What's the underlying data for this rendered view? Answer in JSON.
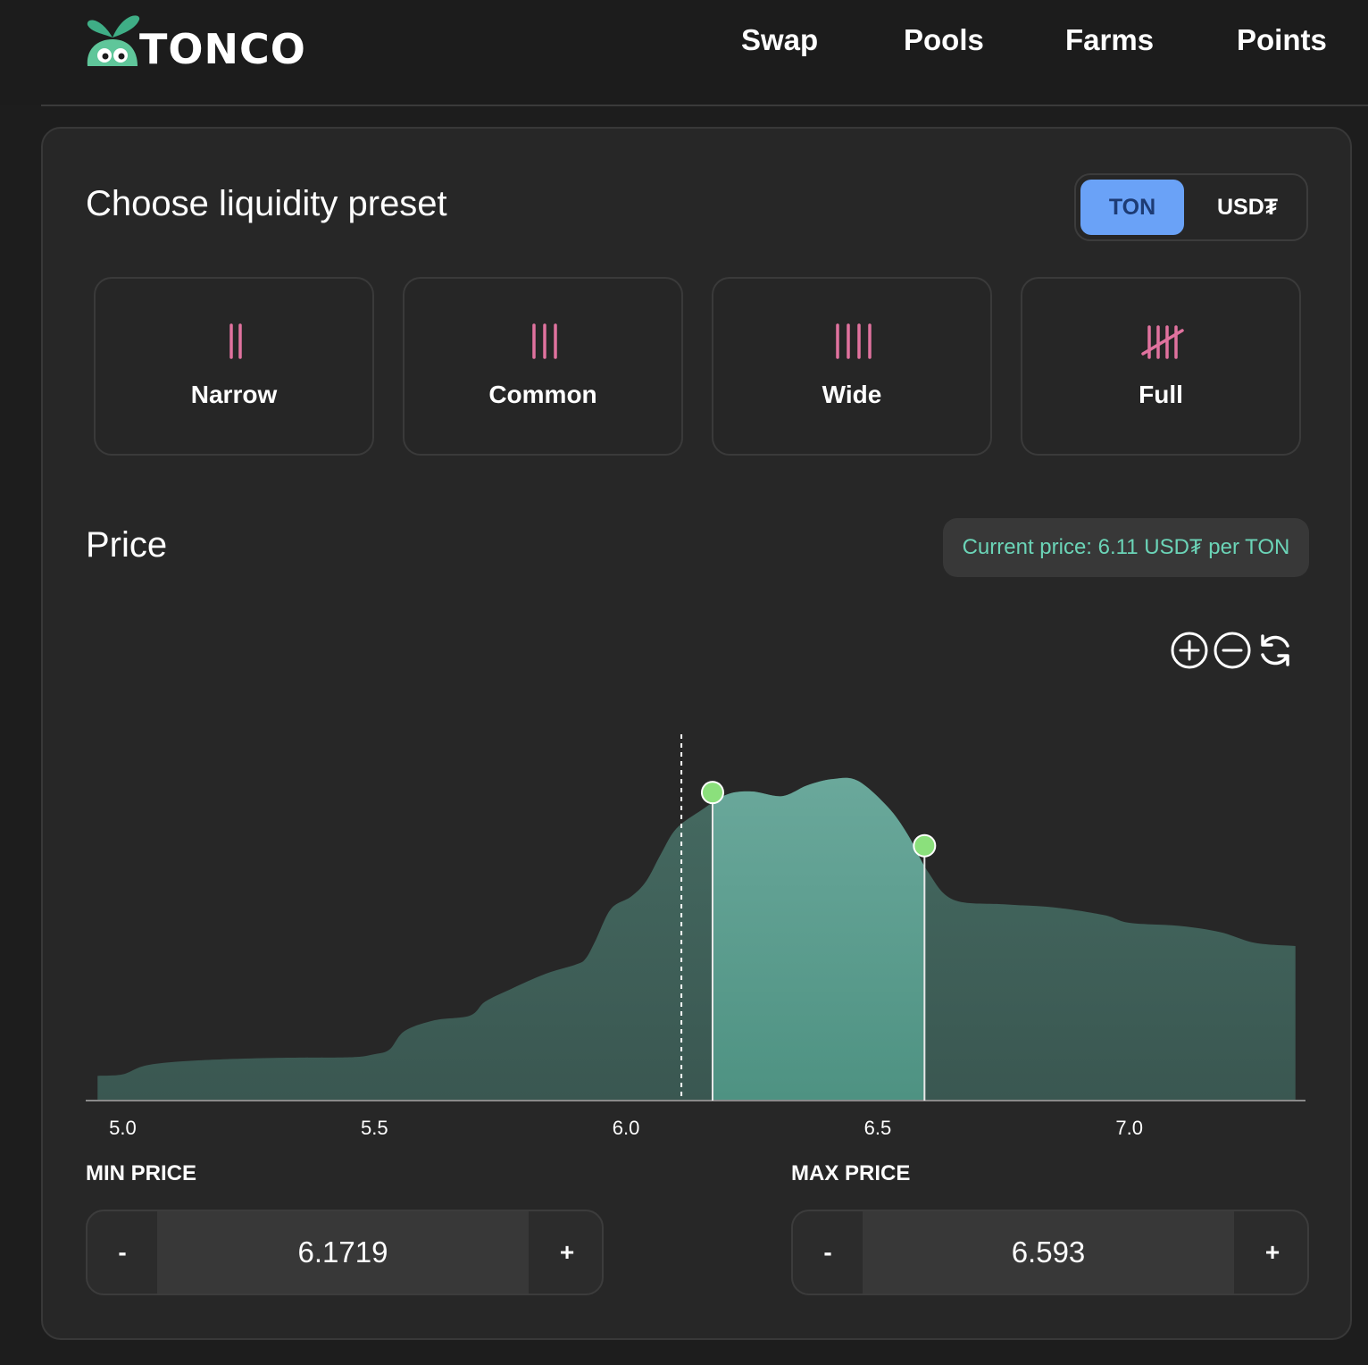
{
  "app": {
    "logo_text": "TONCO"
  },
  "nav": {
    "items": [
      {
        "label": "Swap"
      },
      {
        "label": "Pools"
      },
      {
        "label": "Farms"
      },
      {
        "label": "Points"
      }
    ]
  },
  "preset_section": {
    "title": "Choose liquidity preset",
    "toggle": {
      "active": "TON",
      "inactive": "USD₮"
    },
    "presets": [
      {
        "label": "Narrow",
        "icon": "two-bars-icon"
      },
      {
        "label": "Common",
        "icon": "three-bars-icon"
      },
      {
        "label": "Wide",
        "icon": "four-bars-icon"
      },
      {
        "label": "Full",
        "icon": "tally-five-icon"
      }
    ]
  },
  "price_section": {
    "title": "Price",
    "current_price": "Current price: 6.11 USD₮ per TON",
    "zoom": {
      "in": "zoom-in-icon",
      "out": "zoom-out-icon",
      "reset": "refresh-icon"
    }
  },
  "chart_data": {
    "type": "area",
    "x_ticks": [
      "5.0",
      "5.5",
      "6.0",
      "6.5",
      "7.0"
    ],
    "xlim": [
      4.93,
      7.35
    ],
    "current_price": 6.11,
    "selected_range": [
      6.1719,
      6.593
    ],
    "density": [
      [
        4.95,
        0.08
      ],
      [
        5.0,
        0.085
      ],
      [
        5.05,
        0.115
      ],
      [
        5.15,
        0.13
      ],
      [
        5.3,
        0.138
      ],
      [
        5.45,
        0.14
      ],
      [
        5.5,
        0.15
      ],
      [
        5.53,
        0.165
      ],
      [
        5.56,
        0.225
      ],
      [
        5.62,
        0.26
      ],
      [
        5.69,
        0.275
      ],
      [
        5.72,
        0.32
      ],
      [
        5.77,
        0.36
      ],
      [
        5.84,
        0.41
      ],
      [
        5.9,
        0.44
      ],
      [
        5.92,
        0.46
      ],
      [
        5.94,
        0.52
      ],
      [
        5.97,
        0.62
      ],
      [
        6.01,
        0.66
      ],
      [
        6.04,
        0.71
      ],
      [
        6.07,
        0.8
      ],
      [
        6.1,
        0.88
      ],
      [
        6.15,
        0.94
      ],
      [
        6.2,
        0.99
      ],
      [
        6.25,
        1.0
      ],
      [
        6.31,
        0.985
      ],
      [
        6.36,
        1.02
      ],
      [
        6.41,
        1.04
      ],
      [
        6.46,
        1.035
      ],
      [
        6.52,
        0.95
      ],
      [
        6.56,
        0.86
      ],
      [
        6.6,
        0.74
      ],
      [
        6.65,
        0.65
      ],
      [
        6.75,
        0.635
      ],
      [
        6.85,
        0.625
      ],
      [
        6.95,
        0.6
      ],
      [
        7.0,
        0.575
      ],
      [
        7.1,
        0.565
      ],
      [
        7.18,
        0.545
      ],
      [
        7.25,
        0.51
      ],
      [
        7.33,
        0.5
      ]
    ],
    "grid": false
  },
  "range_inputs": {
    "min": {
      "label": "MIN PRICE",
      "value": "6.1719",
      "minus": "-",
      "plus": "+"
    },
    "max": {
      "label": "MAX PRICE",
      "value": "6.593",
      "minus": "-",
      "plus": "+"
    }
  },
  "colors": {
    "accent_blue": "#6aa2f7",
    "pink_icon": "#e0729e",
    "teal_text": "#6bd4b7",
    "area_dark": "#3f5e57",
    "area_selected": "#5e9e90",
    "handle": "#8be07c"
  }
}
